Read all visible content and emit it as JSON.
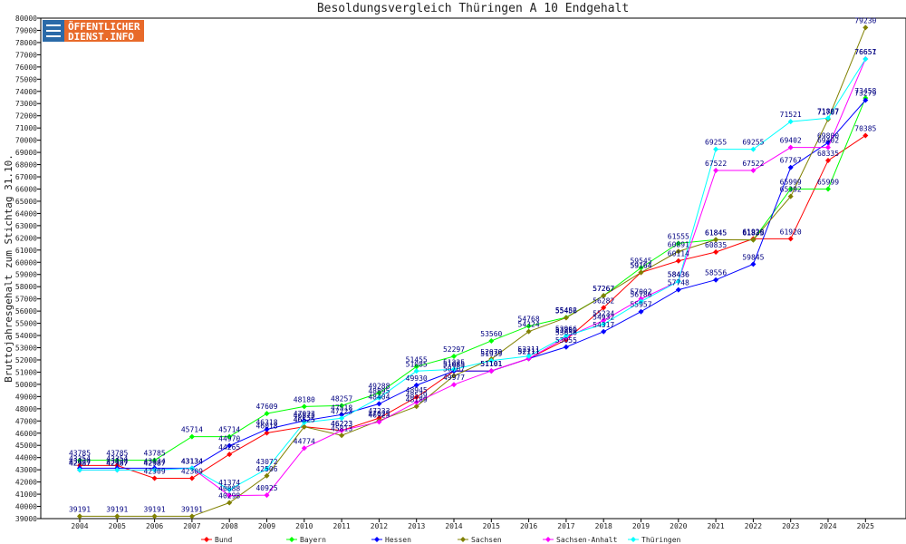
{
  "chart_data": {
    "type": "line",
    "title": "Besoldungsvergleich Thüringen A 10 Endgehalt",
    "ylabel": "Bruttojahresgehalt zum Stichtag 31.10.",
    "xlabel": "",
    "ylim": [
      39000,
      80000
    ],
    "ystep": 1000,
    "grid": false,
    "legend_position": "bottom",
    "x": [
      "2004",
      "2005",
      "2006",
      "2007",
      "2008",
      "2009",
      "2010",
      "2011",
      "2012",
      "2013",
      "2014",
      "2015",
      "2016",
      "2017",
      "2018",
      "2019",
      "2020",
      "2021",
      "2022",
      "2023",
      "2024",
      "2025"
    ],
    "series": [
      {
        "name": "Bund",
        "color": "#ff0000",
        "values": [
          43354,
          43354,
          42309,
          42309,
          44265,
          46018,
          46525,
          46223,
          47233,
          48945,
          51085,
          51101,
          52111,
          53656,
          56282,
          59164,
          60114,
          60835,
          61920,
          61920,
          68335,
          70385
        ]
      },
      {
        "name": "Bayern",
        "color": "#00ff00",
        "values": [
          43785,
          43785,
          43785,
          45714,
          45714,
          47609,
          48180,
          48257,
          49288,
          51455,
          52297,
          53560,
          54768,
          55482,
          57267,
          59545,
          61555,
          61845,
          61835,
          65999,
          65999,
          73458
        ]
      },
      {
        "name": "Hessen",
        "color": "#0000ff",
        "values": [
          43134,
          43134,
          43134,
          43134,
          44970,
          46318,
          47023,
          47518,
          48404,
          49930,
          51085,
          51101,
          52111,
          53055,
          54317,
          55957,
          57748,
          58556,
          59845,
          67767,
          69800,
          73279
        ]
      },
      {
        "name": "Sachsen",
        "color": "#808000",
        "values": [
          39191,
          39191,
          39191,
          39191,
          40298,
          42506,
          46525,
          45813,
          47025,
          48189,
          50707,
          52070,
          54324,
          55456,
          57267,
          59164,
          60891,
          61845,
          61835,
          65392,
          71707,
          79230
        ]
      },
      {
        "name": "Sachsen-Anhalt",
        "color": "#ff00ff",
        "values": [
          42987,
          42987,
          42987,
          43134,
          40888,
          40925,
          44774,
          46223,
          46923,
          48539,
          49977,
          51101,
          52111,
          53850,
          55234,
          57002,
          58436,
          67522,
          67522,
          69402,
          69402,
          76657
        ]
      },
      {
        "name": "Thüringen",
        "color": "#00ffff",
        "values": [
          42987,
          42987,
          42987,
          43134,
          41374,
          43072,
          46875,
          47223,
          48895,
          51085,
          51225,
          51939,
          52311,
          53966,
          54932,
          56786,
          58436,
          69255,
          69255,
          71521,
          71807,
          76651
        ]
      }
    ]
  },
  "logo": {
    "line1": "ÖFFENTLICHER",
    "line2": "DIENST.INFO"
  }
}
